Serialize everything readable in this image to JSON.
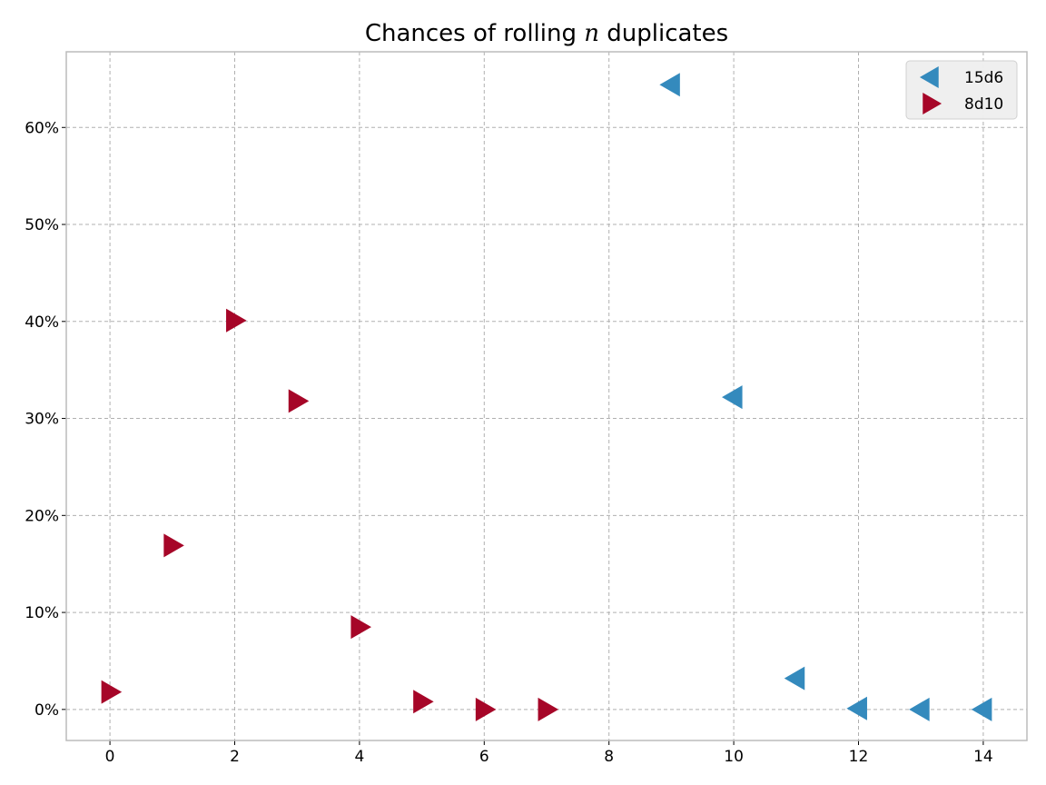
{
  "chart_data": {
    "type": "scatter",
    "title_prefix": "Chances of rolling ",
    "title_var": "n",
    "title_suffix": " duplicates",
    "xlabel": "",
    "ylabel": "",
    "xlim": [
      -0.7,
      14.7
    ],
    "ylim": [
      -0.032,
      0.678
    ],
    "x_ticks": [
      0,
      2,
      4,
      6,
      8,
      10,
      12,
      14
    ],
    "x_tick_labels": [
      "0",
      "2",
      "4",
      "6",
      "8",
      "10",
      "12",
      "14"
    ],
    "y_ticks": [
      0,
      0.1,
      0.2,
      0.3,
      0.4,
      0.5,
      0.6
    ],
    "y_tick_labels": [
      "0%",
      "10%",
      "20%",
      "30%",
      "40%",
      "50%",
      "60%"
    ],
    "grid": true,
    "legend_position": "top-right",
    "series": [
      {
        "name": "15d6",
        "marker": "triangle-left",
        "color": "#348ABD",
        "x": [
          9,
          10,
          11,
          12,
          13,
          14
        ],
        "y": [
          0.644,
          0.322,
          0.032,
          0.001,
          0.0,
          0.0
        ]
      },
      {
        "name": "8d10",
        "marker": "triangle-right",
        "color": "#A60628",
        "x": [
          0,
          1,
          2,
          3,
          4,
          5,
          6,
          7
        ],
        "y": [
          0.018,
          0.169,
          0.401,
          0.318,
          0.085,
          0.008,
          0.0,
          0.0
        ]
      }
    ]
  }
}
